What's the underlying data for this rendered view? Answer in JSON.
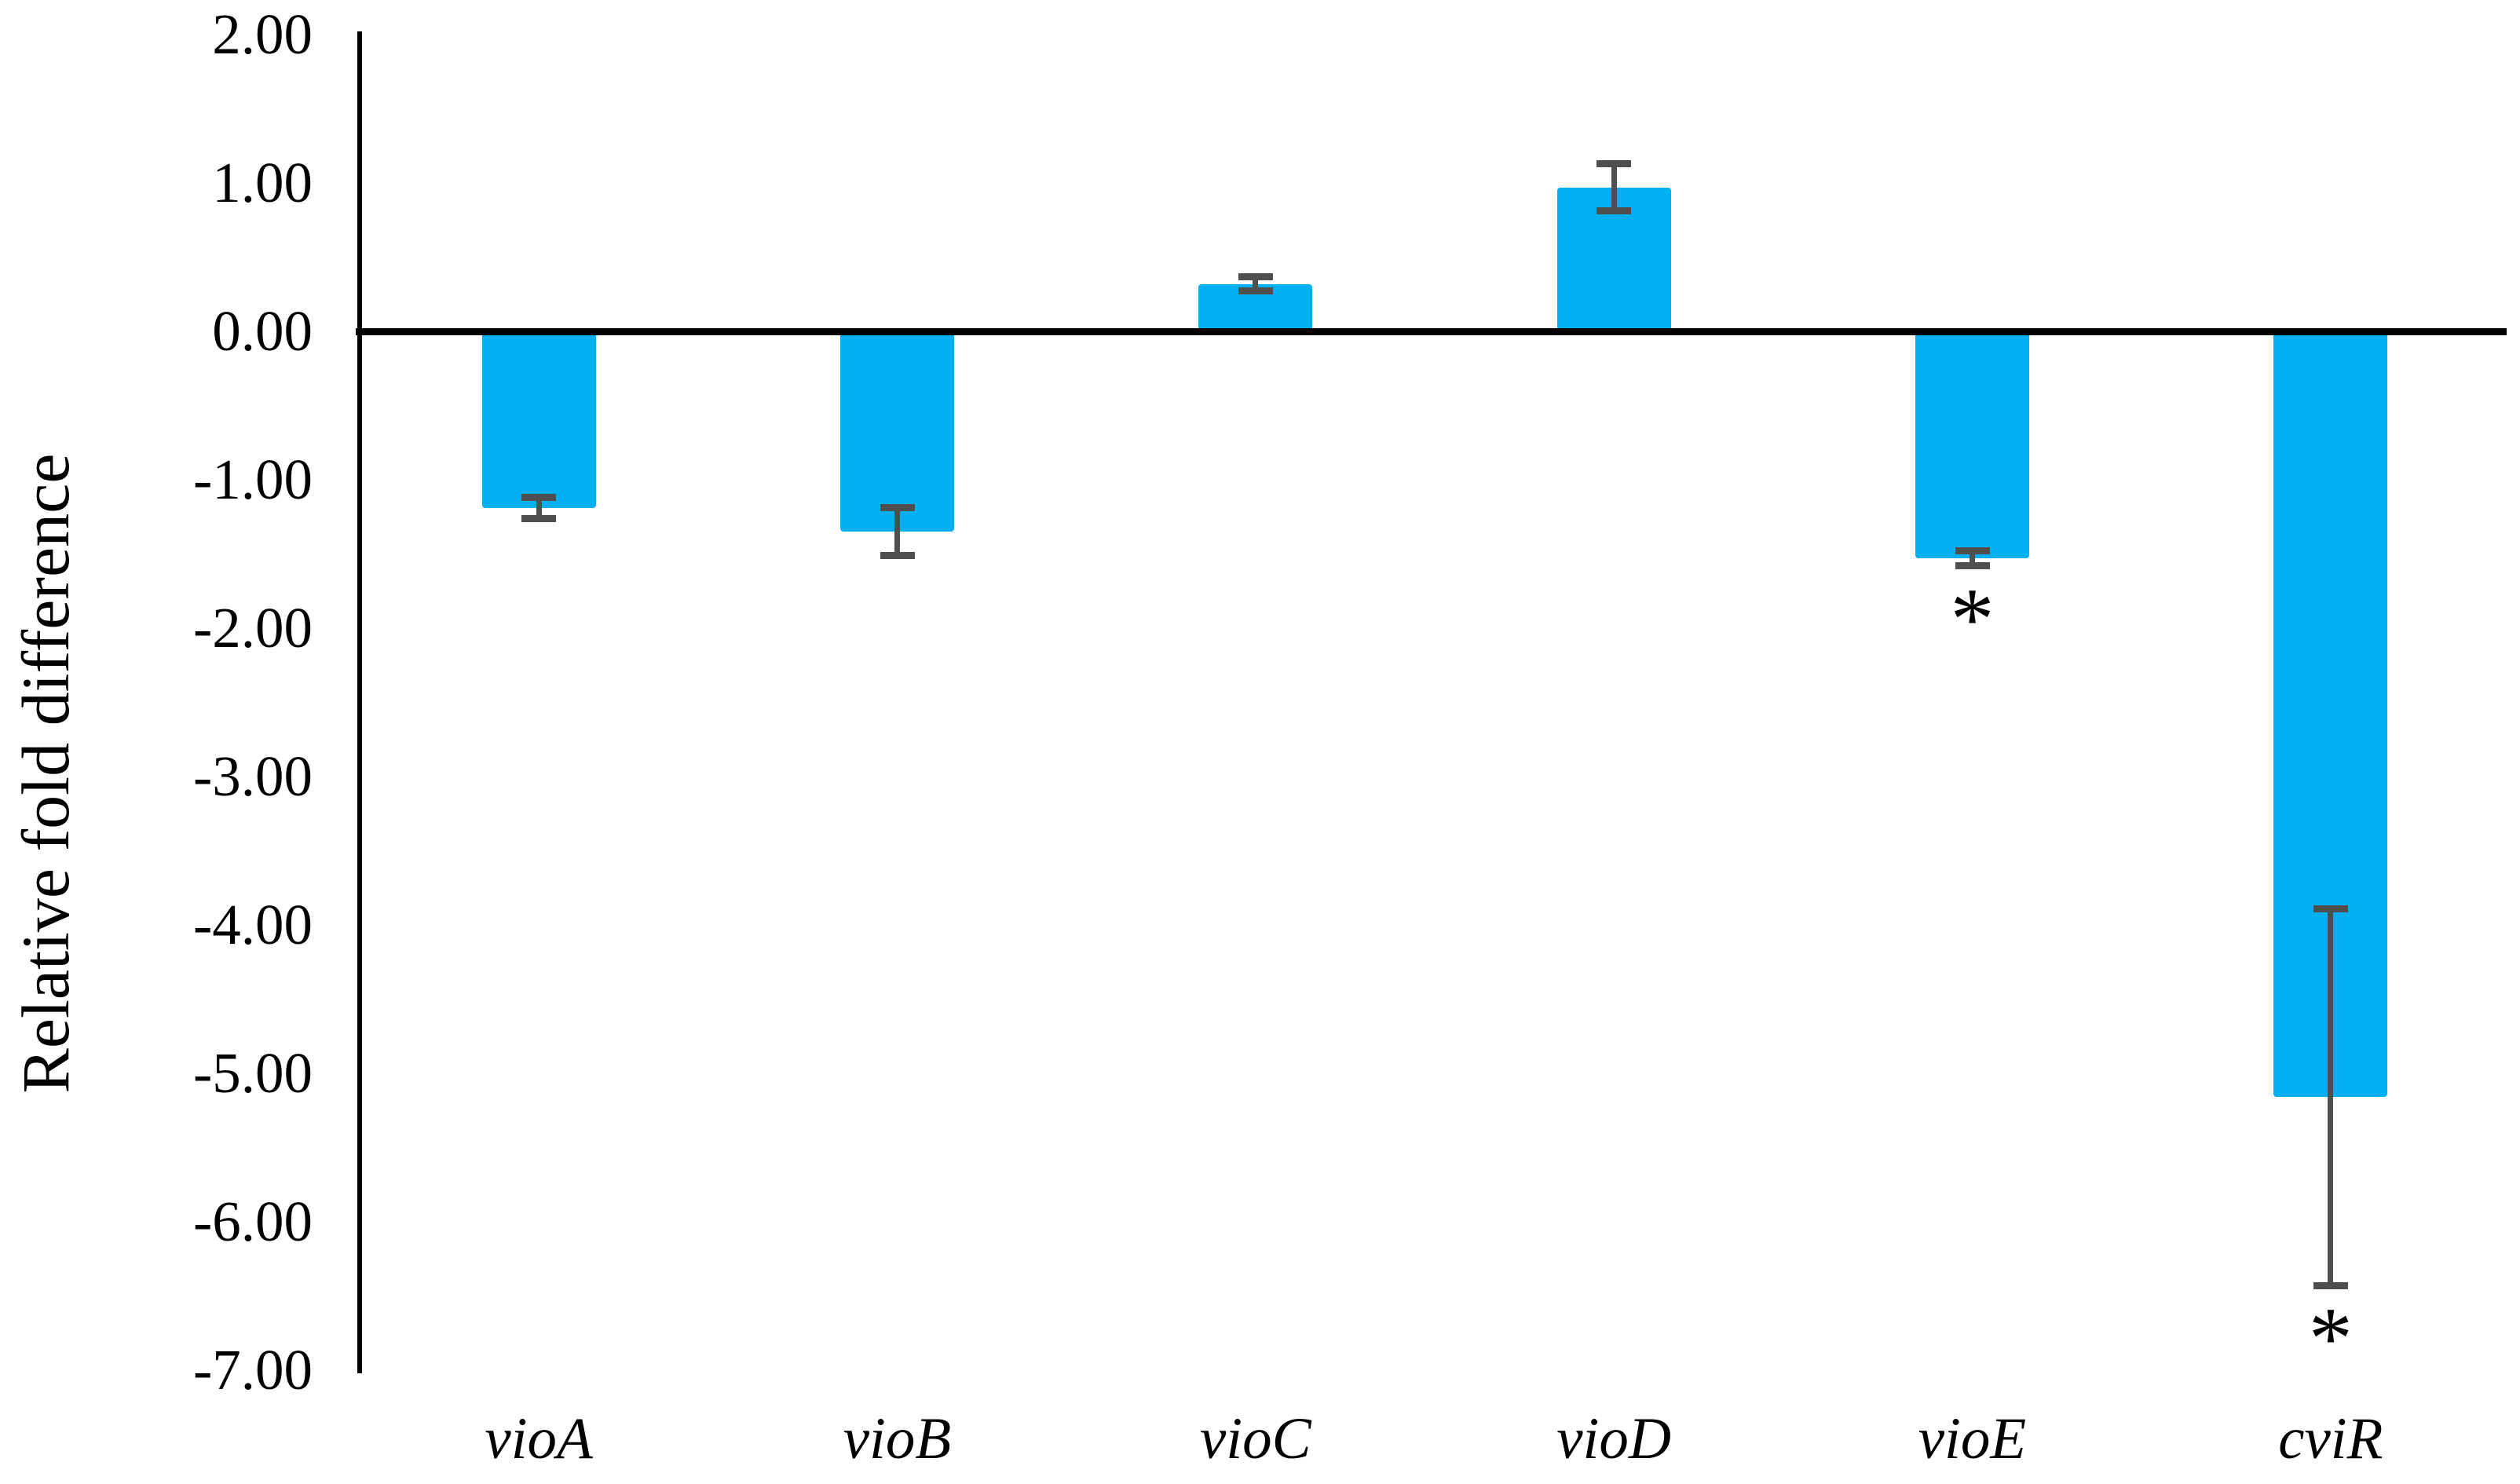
{
  "chart_data": {
    "type": "bar",
    "title": "",
    "xlabel": "",
    "ylabel": "Relative fold difference",
    "ylim": [
      -7,
      2
    ],
    "ytick_step": 1.0,
    "ytick_labels": [
      "2.00",
      "1.00",
      "0.00",
      "-1.00",
      "-2.00",
      "-3.00",
      "-4.00",
      "-5.00",
      "-6.00",
      "-7.00"
    ],
    "categories": [
      "vioA",
      "vioB",
      "vioC",
      "vioD",
      "vioE",
      "cviR"
    ],
    "values": [
      -1.19,
      -1.35,
      0.32,
      0.97,
      -1.53,
      -5.16
    ],
    "errors": [
      0.07,
      0.16,
      0.05,
      0.16,
      0.05,
      1.27
    ],
    "significant": [
      false,
      false,
      false,
      false,
      true,
      true
    ],
    "significance_marker": "*",
    "grid": false,
    "legend_position": "none",
    "colors": {
      "bar": "#00B0F0",
      "error_bar": "#4f4f4f",
      "axis": "#000000",
      "text": "#000000"
    }
  }
}
